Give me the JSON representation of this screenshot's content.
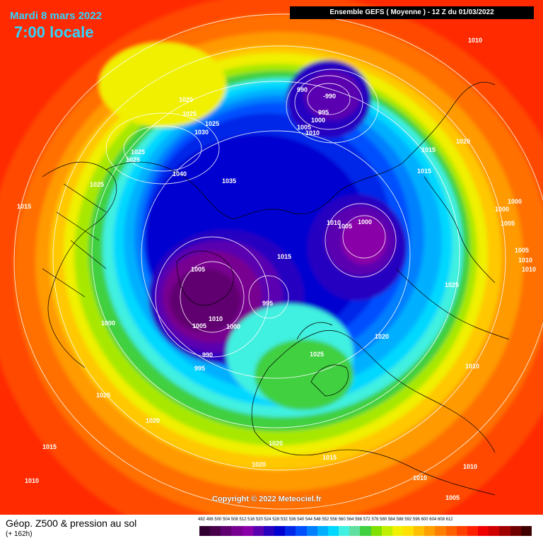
{
  "header": {
    "date": "Mardi 8 mars 2022",
    "time_local": "7:00 locale",
    "model_run": "Ensemble GEFS ( Moyenne ) - 12 Z du 01/03/2022"
  },
  "footer": {
    "title": "Géop. Z500 & pression au sol",
    "lead_time": "(+ 162h)",
    "copyright": "Copyright © 2022 Meteociel.fr"
  },
  "color_scale": {
    "labels": [
      "492",
      "496",
      "500",
      "504",
      "508",
      "512",
      "516",
      "520",
      "524",
      "528",
      "532",
      "536",
      "540",
      "544",
      "548",
      "552",
      "556",
      "560",
      "564",
      "568",
      "572",
      "576",
      "580",
      "584",
      "588",
      "592",
      "596",
      "600",
      "604",
      "608",
      "612"
    ],
    "colors": [
      "#300030",
      "#48004a",
      "#600070",
      "#780090",
      "#8a00a8",
      "#5a00b0",
      "#2800c0",
      "#0000d0",
      "#0028e8",
      "#0050ff",
      "#0080ff",
      "#00b0ff",
      "#00d8ff",
      "#40f0e0",
      "#60e0a0",
      "#40d040",
      "#80e000",
      "#c0f000",
      "#f0f000",
      "#ffe000",
      "#ffc000",
      "#ffa000",
      "#ff8000",
      "#ff6000",
      "#ff4000",
      "#ff2000",
      "#f00000",
      "#d00000",
      "#a00000",
      "#700000",
      "#400000"
    ]
  },
  "pressure_labels": [
    {
      "text": "1010"
    },
    {
      "text": "990"
    },
    {
      "text": "-990"
    },
    {
      "text": "995"
    },
    {
      "text": "1000"
    },
    {
      "text": "1005"
    },
    {
      "text": "1010"
    },
    {
      "text": "1020"
    },
    {
      "text": "1025"
    },
    {
      "text": "1025"
    },
    {
      "text": "1030"
    },
    {
      "text": "1025"
    },
    {
      "text": "1025"
    },
    {
      "text": "1040"
    },
    {
      "text": "1025"
    },
    {
      "text": "1035"
    },
    {
      "text": "1015"
    },
    {
      "text": "1015"
    },
    {
      "text": "1020"
    },
    {
      "text": "1010"
    },
    {
      "text": "1005"
    },
    {
      "text": "1000"
    },
    {
      "text": "1000"
    },
    {
      "text": "1000"
    },
    {
      "text": "1005"
    },
    {
      "text": "1005"
    },
    {
      "text": "1015"
    },
    {
      "text": "1010"
    },
    {
      "text": "1010"
    },
    {
      "text": "1005"
    },
    {
      "text": "1015"
    },
    {
      "text": "995"
    },
    {
      "text": "1010"
    },
    {
      "text": "1025"
    },
    {
      "text": "1005"
    },
    {
      "text": "1000"
    },
    {
      "text": "1000"
    },
    {
      "text": "1020"
    },
    {
      "text": "1010"
    },
    {
      "text": "990"
    },
    {
      "text": "1025"
    },
    {
      "text": "995"
    },
    {
      "text": "1025"
    },
    {
      "text": "1020"
    },
    {
      "text": "1015"
    },
    {
      "text": "1020"
    },
    {
      "text": "1020"
    },
    {
      "text": "1015"
    },
    {
      "text": "1010"
    },
    {
      "text": "1010"
    },
    {
      "text": "1010"
    },
    {
      "text": "1005"
    },
    {
      "text": "1015"
    },
    {
      "text": "1015"
    }
  ]
}
